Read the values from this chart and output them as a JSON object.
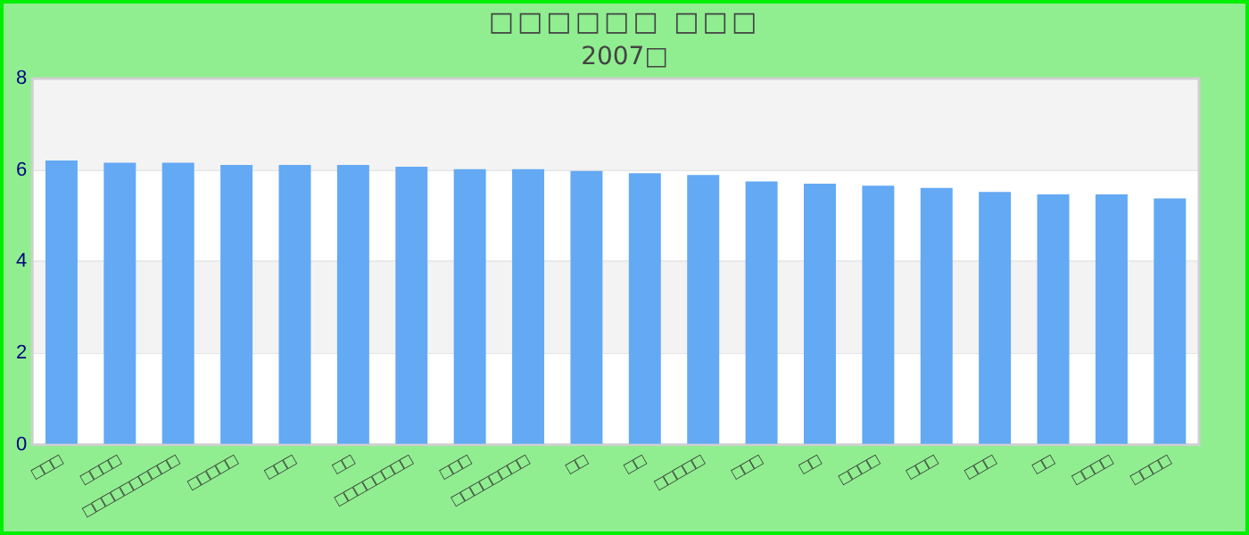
{
  "chart_data": {
    "type": "bar",
    "title": "□□□□□□ □□□",
    "subtitle": "2007□",
    "categories": [
      "□□□",
      "□□□□",
      "□□□□□□□□□□",
      "□□□□□",
      "□□□",
      "□□",
      "□□□□□□□□",
      "□□□",
      "□□□□□□□□",
      "□□",
      "□□",
      "□□□□□",
      "□□□",
      "□□",
      "□□□□",
      "□□□",
      "□□□",
      "□□",
      "□□□□",
      "□□□□"
    ],
    "values": [
      6.21,
      6.16,
      6.16,
      6.11,
      6.11,
      6.11,
      6.07,
      6.02,
      6.02,
      5.98,
      5.93,
      5.89,
      5.75,
      5.7,
      5.66,
      5.61,
      5.52,
      5.47,
      5.47,
      5.38
    ],
    "color": "#63a9f4",
    "ylim": [
      0,
      8
    ],
    "yticks": [
      0,
      2,
      4,
      6,
      8
    ],
    "grid": "y",
    "legend": false
  }
}
